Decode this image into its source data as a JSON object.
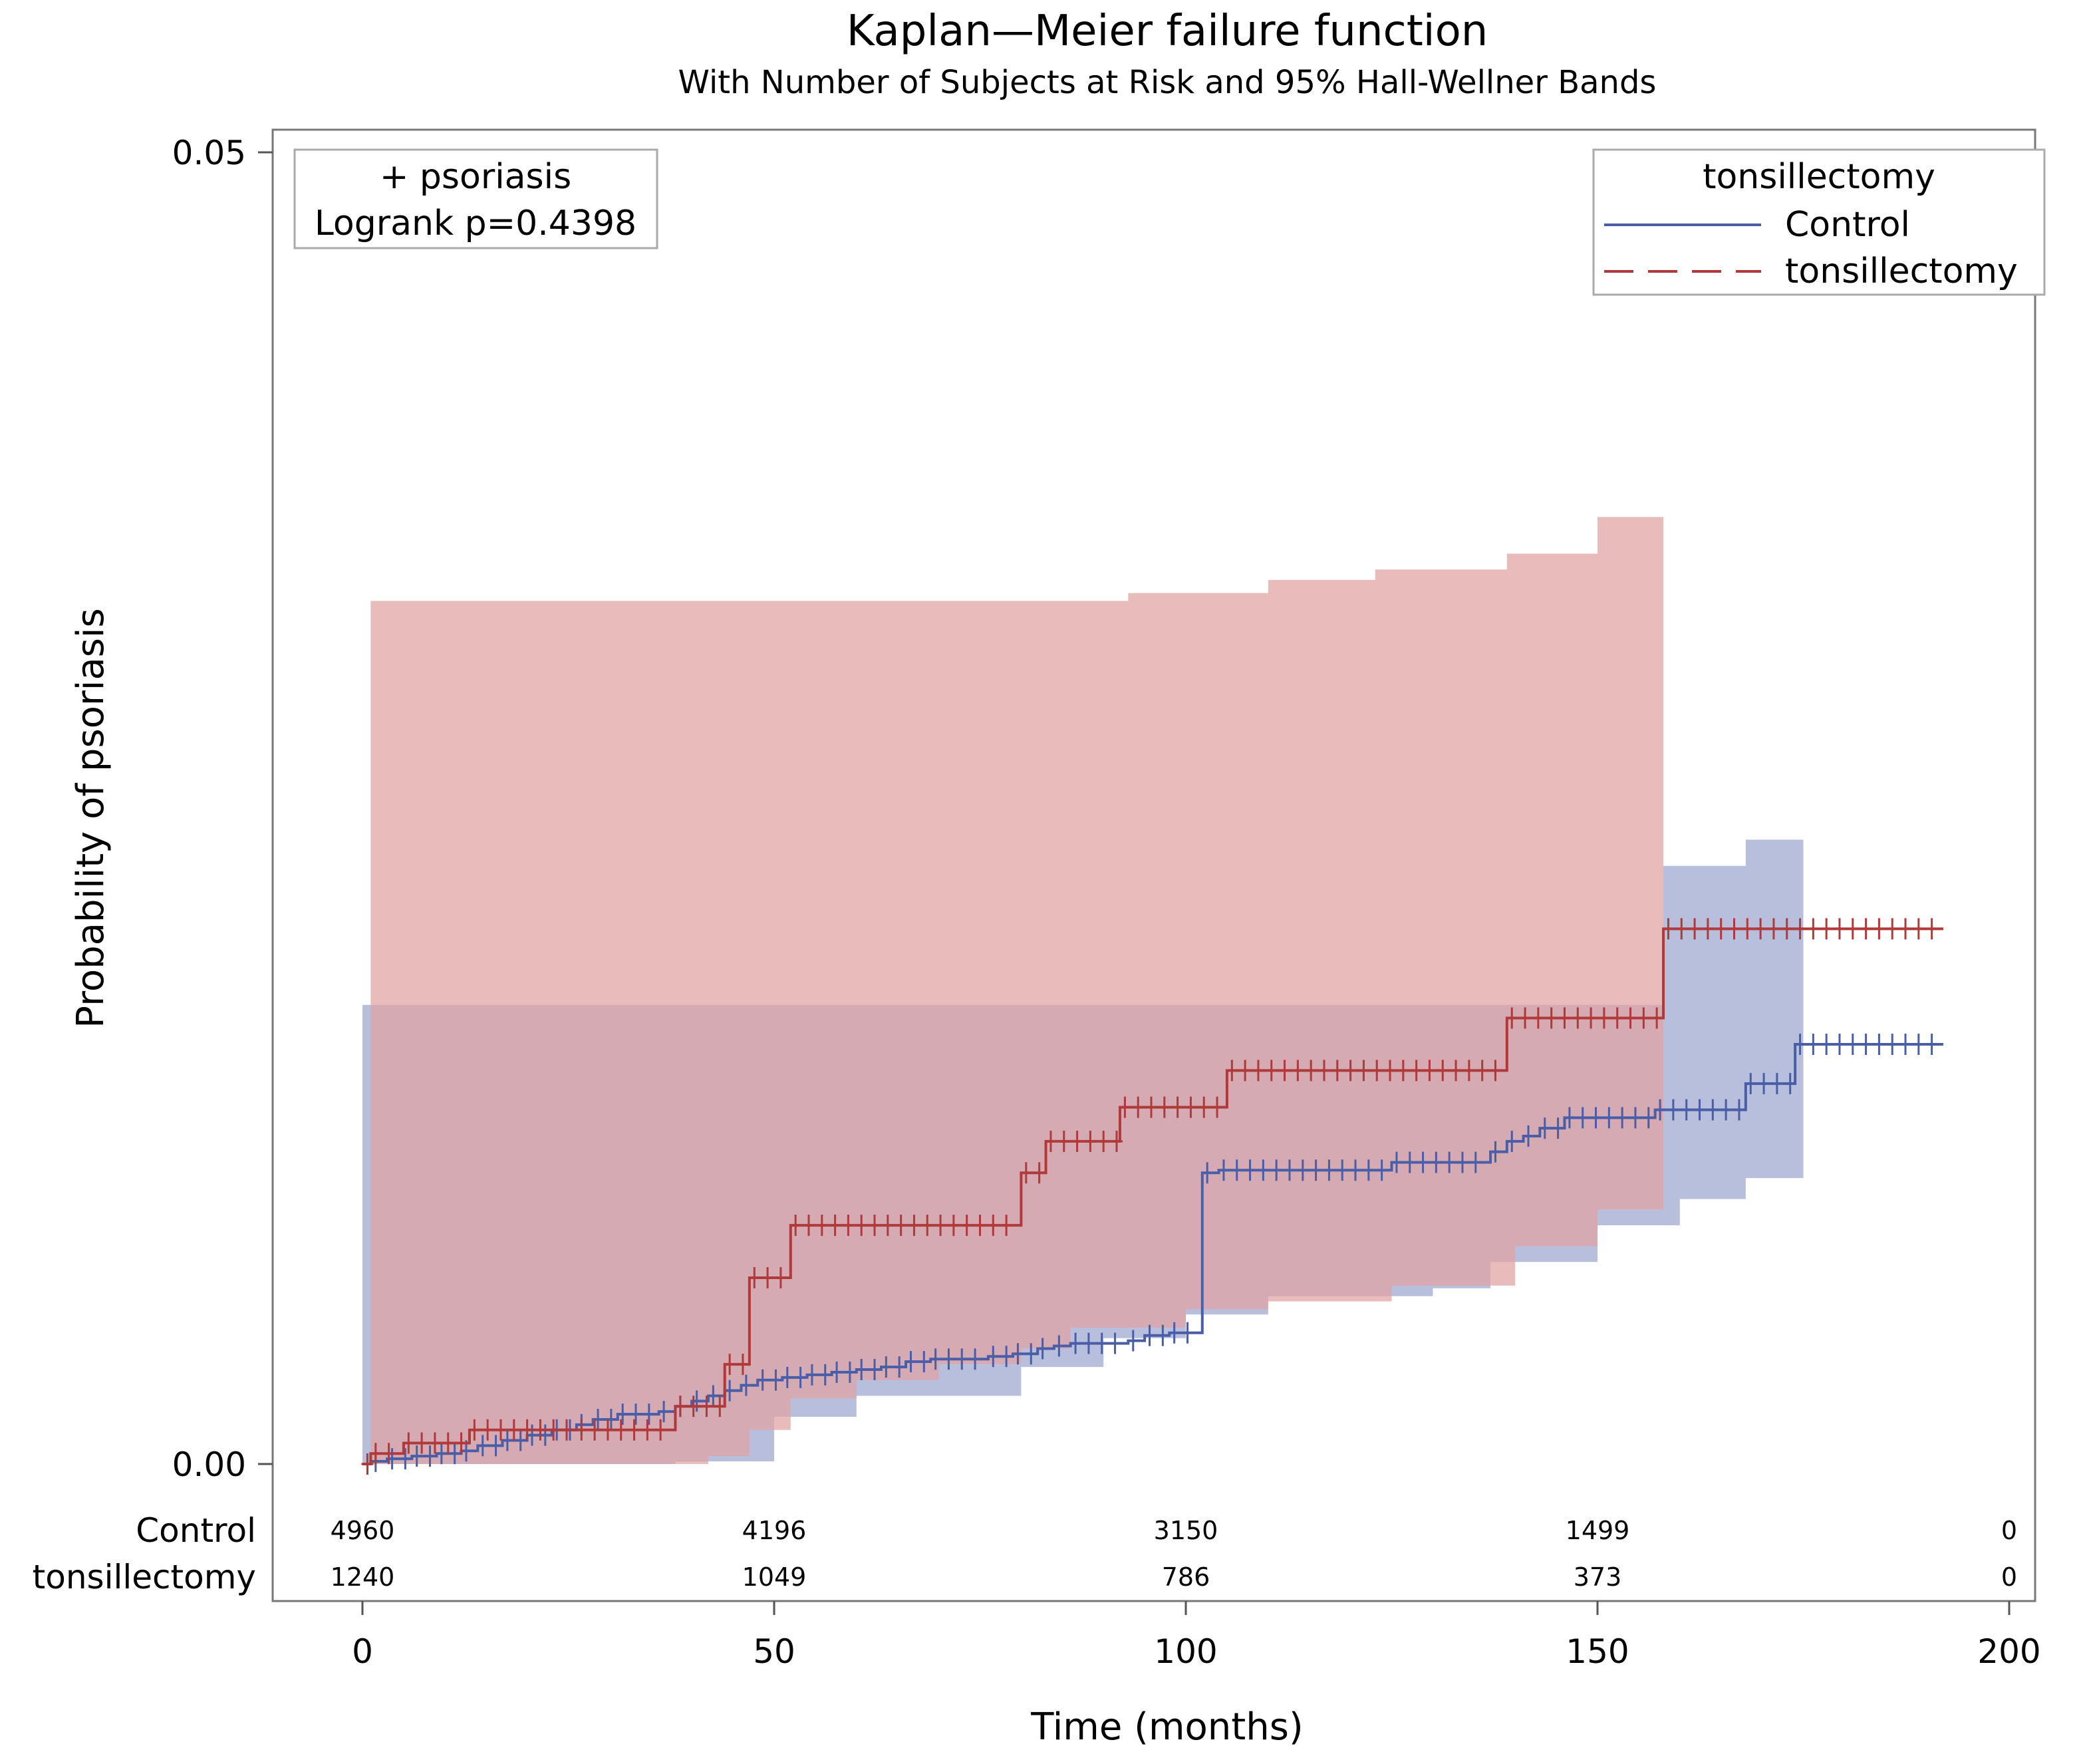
{
  "chart_data": {
    "type": "line",
    "subtype": "kaplan-meier-failure",
    "title": "Kaplan—Meier failure function",
    "subtitle": "With Number of Subjects at Risk and 95% Hall-Wellner Bands",
    "xlabel": "Time (months)",
    "ylabel": "Probability of psoriasis",
    "xlim": [
      -10,
      205
    ],
    "ylim": [
      0,
      0.05
    ],
    "x_ticks": [
      0,
      50,
      100,
      150,
      200
    ],
    "x_tick_labels": [
      "0",
      "50",
      "100",
      "150",
      "200"
    ],
    "y_ticks": [
      0,
      0.05
    ],
    "y_tick_labels": [
      "0.00",
      "0.05"
    ],
    "inset": {
      "line1": "+ psoriasis",
      "line2": "Logrank p=0.4398"
    },
    "legend": {
      "title": "tonsillectomy",
      "position": "top-right"
    },
    "series": [
      {
        "name": "Control",
        "color": "#4a5ea8",
        "band_color": "#8c98c8",
        "steps": [
          [
            0,
            0
          ],
          [
            1,
            0.0001
          ],
          [
            3,
            0.0002
          ],
          [
            6,
            0.0003
          ],
          [
            9,
            0.0004
          ],
          [
            12,
            0.0005
          ],
          [
            14,
            0.0007
          ],
          [
            17,
            0.0009
          ],
          [
            20,
            0.0011
          ],
          [
            23,
            0.0013
          ],
          [
            26,
            0.0015
          ],
          [
            28,
            0.0017
          ],
          [
            31,
            0.0019
          ],
          [
            36,
            0.002
          ],
          [
            38,
            0.0022
          ],
          [
            40,
            0.0024
          ],
          [
            42,
            0.0026
          ],
          [
            44,
            0.0028
          ],
          [
            46,
            0.003
          ],
          [
            48,
            0.0032
          ],
          [
            51,
            0.0033
          ],
          [
            54,
            0.0034
          ],
          [
            57,
            0.0035
          ],
          [
            60,
            0.0036
          ],
          [
            63,
            0.0037
          ],
          [
            66,
            0.0039
          ],
          [
            69,
            0.004
          ],
          [
            76,
            0.0041
          ],
          [
            79,
            0.0042
          ],
          [
            82,
            0.0044
          ],
          [
            84,
            0.0045
          ],
          [
            86,
            0.0046
          ],
          [
            93,
            0.0047
          ],
          [
            95,
            0.0049
          ],
          [
            98,
            0.005
          ],
          [
            100,
            0.0011
          ],
          [
            102,
            0.0111
          ],
          [
            104,
            0.0112
          ],
          [
            125,
            0.0115
          ],
          [
            137,
            0.0119
          ],
          [
            139,
            0.0123
          ],
          [
            141,
            0.0125
          ],
          [
            143,
            0.0128
          ],
          [
            146,
            0.0132
          ],
          [
            157,
            0.0135
          ],
          [
            168,
            0.0145
          ],
          [
            174,
            0.016
          ],
          [
            192,
            0.016
          ]
        ],
        "band_upper": [
          [
            0,
            0.0175
          ],
          [
            52,
            0.0175
          ],
          [
            60,
            0.0175
          ],
          [
            70,
            0.0175
          ],
          [
            80,
            0.0175
          ],
          [
            90,
            0.0175
          ],
          [
            100,
            0.0175
          ],
          [
            110,
            0.0175
          ],
          [
            120,
            0.0175
          ],
          [
            130,
            0.0175
          ],
          [
            140,
            0.0175
          ],
          [
            150,
            0.0175
          ],
          [
            157,
            0.0175
          ],
          [
            158,
            0.0228
          ],
          [
            168,
            0.0238
          ],
          [
            175,
            0.0253
          ]
        ],
        "band_lower": [
          [
            0,
            0
          ],
          [
            10,
            0
          ],
          [
            35,
            0
          ],
          [
            38,
            0.0001
          ],
          [
            50,
            0.0018
          ],
          [
            60,
            0.0026
          ],
          [
            80,
            0.0037
          ],
          [
            90,
            0.0048
          ],
          [
            100,
            0.0057
          ],
          [
            110,
            0.0064
          ],
          [
            130,
            0.0067
          ],
          [
            137,
            0.0077
          ],
          [
            150,
            0.0091
          ],
          [
            160,
            0.0101
          ],
          [
            168,
            0.0109
          ],
          [
            175,
            0.0118
          ]
        ]
      },
      {
        "name": "tonsillectomy",
        "color": "#b03a3a",
        "band_color": "#e0a2a2",
        "steps": [
          [
            0,
            0
          ],
          [
            1,
            0.0004
          ],
          [
            5,
            0.0008
          ],
          [
            13,
            0.0013
          ],
          [
            26,
            0.0013
          ],
          [
            38,
            0.0022
          ],
          [
            44,
            0.0038
          ],
          [
            47,
            0.0071
          ],
          [
            52,
            0.0091
          ],
          [
            80,
            0.0111
          ],
          [
            83,
            0.0123
          ],
          [
            92,
            0.0136
          ],
          [
            105,
            0.015
          ],
          [
            139,
            0.017
          ],
          [
            158,
            0.0204
          ],
          [
            192,
            0.0204
          ]
        ],
        "band_upper": [
          [
            1,
            0.0329
          ],
          [
            20,
            0.0329
          ],
          [
            40,
            0.0329
          ],
          [
            60,
            0.0329
          ],
          [
            83,
            0.0329
          ],
          [
            93,
            0.0332
          ],
          [
            110,
            0.0337
          ],
          [
            123,
            0.0341
          ],
          [
            139,
            0.0347
          ],
          [
            150,
            0.0361
          ],
          [
            158,
            0.0372
          ]
        ],
        "band_lower": [
          [
            1,
            0
          ],
          [
            20,
            0
          ],
          [
            35,
            0
          ],
          [
            42,
            0.0003
          ],
          [
            47,
            0.0013
          ],
          [
            52,
            0.0025
          ],
          [
            60,
            0.0032
          ],
          [
            70,
            0.0038
          ],
          [
            80,
            0.0044
          ],
          [
            86,
            0.0052
          ],
          [
            100,
            0.0059
          ],
          [
            110,
            0.0062
          ],
          [
            125,
            0.0068
          ],
          [
            140,
            0.0083
          ],
          [
            150,
            0.0097
          ],
          [
            158,
            0.0108
          ]
        ]
      }
    ],
    "risk_table": {
      "times": [
        0,
        50,
        100,
        150,
        200
      ],
      "rows": [
        {
          "label": "Control",
          "values": [
            "4960",
            "4196",
            "3150",
            "1499",
            "0"
          ]
        },
        {
          "label": "tonsillectomy",
          "values": [
            "1240",
            "1049",
            "786",
            "373",
            "0"
          ]
        }
      ]
    }
  }
}
